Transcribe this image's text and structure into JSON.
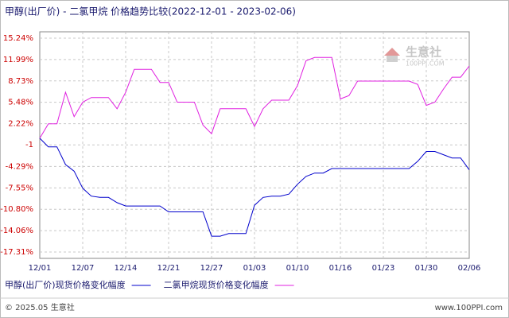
{
  "chart_data": {
    "type": "line",
    "title": "甲醇(出厂价) - 二氯甲烷 价格趋势比较(2022-12-01 - 2023-02-06)",
    "categories": [
      "12/01",
      null,
      null,
      null,
      null,
      "12/07",
      null,
      null,
      null,
      null,
      "12/14",
      null,
      null,
      null,
      null,
      "12/21",
      null,
      null,
      null,
      null,
      "12/27",
      null,
      null,
      null,
      null,
      "01/03",
      null,
      null,
      null,
      null,
      "01/10",
      null,
      null,
      null,
      null,
      "01/16",
      null,
      null,
      null,
      null,
      "01/23",
      null,
      null,
      null,
      null,
      "01/30",
      null,
      null,
      null,
      null,
      "02/06"
    ],
    "series": [
      {
        "name": "甲醇(出厂价)现货价格变化幅度",
        "color": "#0000cc",
        "values": [
          0,
          -1.3,
          -1.3,
          -4.0,
          -5.0,
          -7.6,
          -8.8,
          -9.0,
          -9.0,
          -9.8,
          -10.3,
          -10.3,
          -10.3,
          -10.3,
          -10.3,
          -11.2,
          -11.2,
          -11.2,
          -11.2,
          -11.2,
          -14.9,
          -14.9,
          -14.5,
          -14.5,
          -14.5,
          -10.2,
          -9.0,
          -8.8,
          -8.8,
          -8.5,
          -7.0,
          -5.8,
          -5.3,
          -5.3,
          -4.6,
          -4.6,
          -4.6,
          -4.6,
          -4.6,
          -4.6,
          -4.6,
          -4.6,
          -4.6,
          -4.6,
          -3.5,
          -2.0,
          -2.0,
          -2.5,
          -3.0,
          -3.0,
          -4.8
        ]
      },
      {
        "name": "二氯甲烷现货价格变化幅度",
        "color": "#e020e0",
        "values": [
          0,
          2.2,
          2.2,
          7.0,
          3.3,
          5.5,
          6.2,
          6.2,
          6.2,
          4.5,
          7.0,
          10.5,
          10.5,
          10.5,
          8.5,
          8.5,
          5.5,
          5.5,
          5.5,
          2.0,
          0.7,
          4.5,
          4.5,
          4.5,
          4.5,
          1.8,
          4.5,
          5.8,
          5.8,
          5.8,
          8.0,
          11.8,
          12.3,
          12.3,
          12.3,
          6.0,
          6.5,
          8.7,
          8.7,
          8.7,
          8.7,
          8.7,
          8.7,
          8.7,
          8.2,
          5.0,
          5.5,
          7.5,
          9.3,
          9.3,
          11.0
        ]
      }
    ],
    "ylim": [
      -17.31,
      15.24
    ],
    "yticks": [
      {
        "value": 15.24,
        "label": "15.24%"
      },
      {
        "value": 11.99,
        "label": "11.99%"
      },
      {
        "value": 8.73,
        "label": "8.73%"
      },
      {
        "value": 5.48,
        "label": "5.48%"
      },
      {
        "value": 2.22,
        "label": "2.22%"
      },
      -1,
      {
        "value": -4.29,
        "label": "-4.29%"
      },
      {
        "value": -7.55,
        "label": "-7.55%"
      },
      {
        "value": -10.8,
        "label": "-10.80%"
      },
      {
        "value": -14.06,
        "label": "-14.06%"
      },
      {
        "value": -17.31,
        "label": "-17.31%"
      }
    ],
    "grid": true
  },
  "watermark": {
    "name": "生意社",
    "site": "100PPI.COM"
  },
  "footer": {
    "copyright": "© 2025.05 生意社",
    "site": "www.100PPI.com"
  }
}
